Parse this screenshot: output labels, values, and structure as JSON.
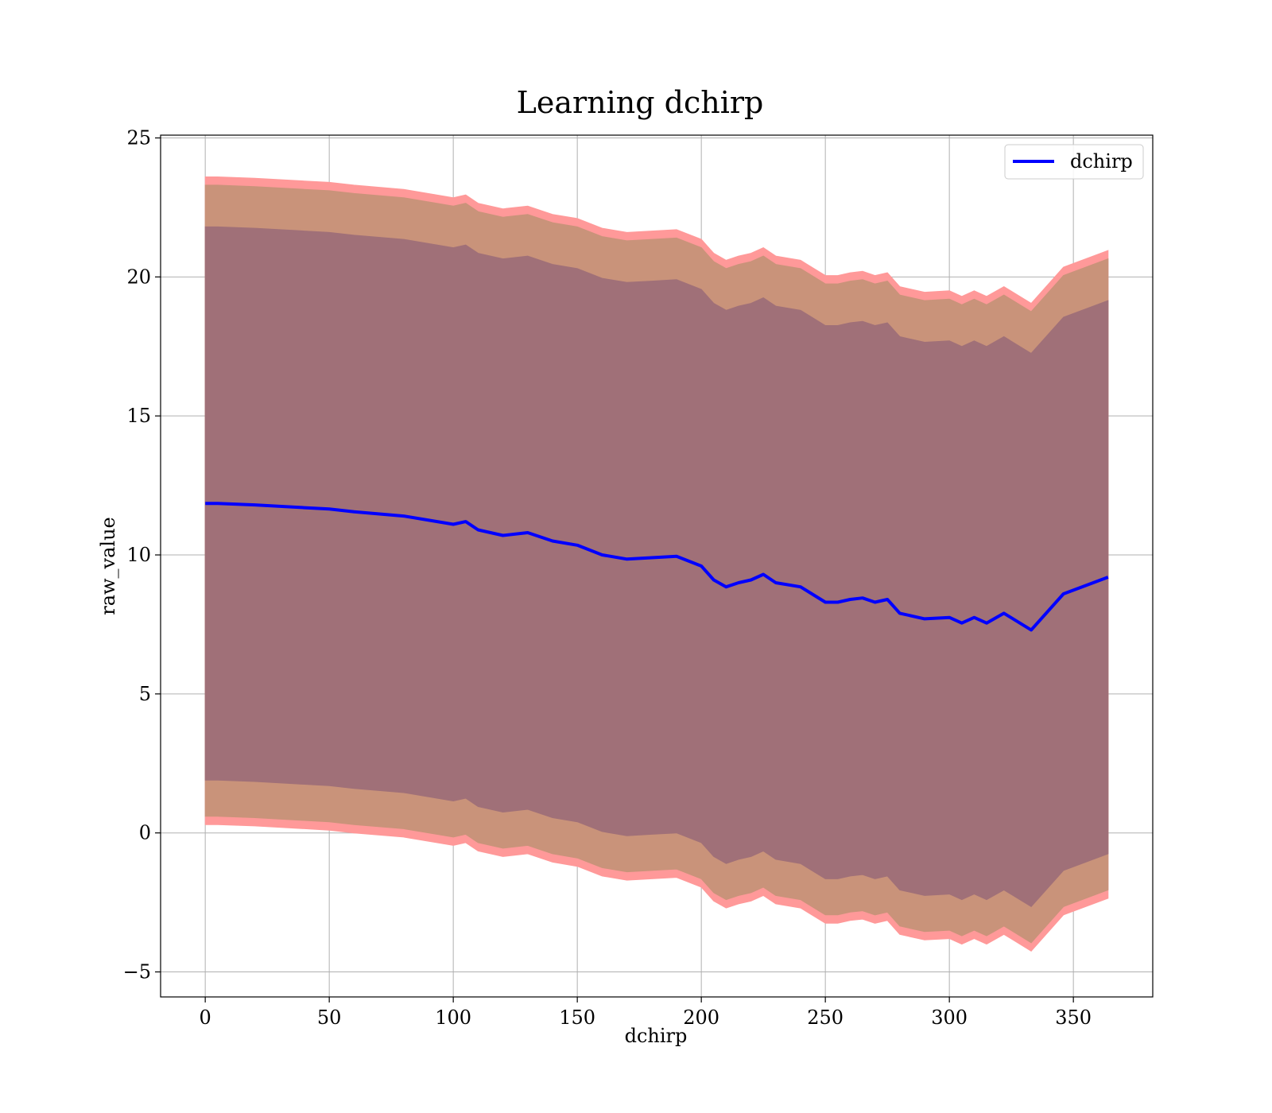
{
  "chart_data": {
    "type": "line",
    "title": "Learning dchirp",
    "xlabel": "dchirp",
    "ylabel": "raw_value",
    "xlim": [
      -18,
      382
    ],
    "ylim": [
      -5.9,
      25.1
    ],
    "xticks": [
      0,
      50,
      100,
      150,
      200,
      250,
      300,
      350
    ],
    "yticks": [
      -5,
      0,
      5,
      10,
      15,
      20,
      25
    ],
    "xtick_labels": [
      "0",
      "50",
      "100",
      "150",
      "200",
      "250",
      "300",
      "350"
    ],
    "ytick_labels": [
      "−5",
      "0",
      "5",
      "10",
      "15",
      "20",
      "25"
    ],
    "grid": true,
    "legend": {
      "position": "top-right",
      "entries": [
        "dchirp"
      ]
    },
    "colors": {
      "line": "#0000ff",
      "band_outer": "#ff9999",
      "band_middle": "#c9937a",
      "band_inner": "#a07078",
      "grid": "#b0b0b0"
    },
    "x": [
      0,
      5,
      20,
      40,
      50,
      60,
      80,
      100,
      105,
      110,
      120,
      130,
      140,
      150,
      160,
      170,
      180,
      190,
      200,
      205,
      210,
      215,
      220,
      225,
      230,
      240,
      250,
      255,
      260,
      265,
      270,
      275,
      280,
      290,
      300,
      305,
      310,
      315,
      322,
      333,
      346,
      364
    ],
    "series": [
      {
        "name": "dchirp",
        "values": [
          11.85,
          11.85,
          11.8,
          11.7,
          11.65,
          11.55,
          11.4,
          11.1,
          11.2,
          10.9,
          10.7,
          10.8,
          10.5,
          10.35,
          10.0,
          9.85,
          9.9,
          9.95,
          9.6,
          9.1,
          8.85,
          9.0,
          9.1,
          9.3,
          9.0,
          8.85,
          8.3,
          8.3,
          8.4,
          8.45,
          8.3,
          8.4,
          7.9,
          7.7,
          7.75,
          7.55,
          7.75,
          7.55,
          7.9,
          7.3,
          8.6,
          9.2
        ]
      }
    ],
    "bands": [
      {
        "lower": [
          0.3,
          0.3,
          0.25,
          0.15,
          0.1,
          0.0,
          -0.15,
          -0.45,
          -0.35,
          -0.65,
          -0.85,
          -0.75,
          -1.05,
          -1.2,
          -1.55,
          -1.7,
          -1.65,
          -1.6,
          -1.95,
          -2.45,
          -2.7,
          -2.55,
          -2.45,
          -2.25,
          -2.55,
          -2.7,
          -3.25,
          -3.25,
          -3.15,
          -3.1,
          -3.25,
          -3.15,
          -3.65,
          -3.85,
          -3.8,
          -4.0,
          -3.8,
          -4.0,
          -3.65,
          -4.25,
          -2.95,
          -2.35
        ],
        "upper": [
          23.6,
          23.6,
          23.55,
          23.45,
          23.4,
          23.3,
          23.15,
          22.85,
          22.95,
          22.65,
          22.45,
          22.55,
          22.25,
          22.1,
          21.75,
          21.6,
          21.65,
          21.7,
          21.35,
          20.85,
          20.6,
          20.75,
          20.85,
          21.05,
          20.75,
          20.6,
          20.05,
          20.05,
          20.15,
          20.2,
          20.05,
          20.15,
          19.65,
          19.45,
          19.5,
          19.3,
          19.5,
          19.3,
          19.65,
          19.05,
          20.35,
          20.95
        ]
      },
      {
        "lower": [
          0.6,
          0.6,
          0.55,
          0.45,
          0.4,
          0.3,
          0.15,
          -0.15,
          -0.05,
          -0.35,
          -0.55,
          -0.45,
          -0.75,
          -0.9,
          -1.25,
          -1.4,
          -1.35,
          -1.3,
          -1.65,
          -2.15,
          -2.4,
          -2.25,
          -2.15,
          -1.95,
          -2.25,
          -2.4,
          -2.95,
          -2.95,
          -2.85,
          -2.8,
          -2.95,
          -2.85,
          -3.35,
          -3.55,
          -3.5,
          -3.7,
          -3.5,
          -3.7,
          -3.35,
          -3.95,
          -2.65,
          -2.05
        ],
        "upper": [
          23.3,
          23.3,
          23.25,
          23.15,
          23.1,
          23.0,
          22.85,
          22.55,
          22.65,
          22.35,
          22.15,
          22.25,
          21.95,
          21.8,
          21.45,
          21.3,
          21.35,
          21.4,
          21.05,
          20.55,
          20.3,
          20.45,
          20.55,
          20.75,
          20.45,
          20.3,
          19.75,
          19.75,
          19.85,
          19.9,
          19.75,
          19.85,
          19.35,
          19.15,
          19.2,
          19.0,
          19.2,
          19.0,
          19.35,
          18.75,
          20.05,
          20.65
        ]
      },
      {
        "lower": [
          1.9,
          1.9,
          1.85,
          1.75,
          1.7,
          1.6,
          1.45,
          1.15,
          1.25,
          0.95,
          0.75,
          0.85,
          0.55,
          0.4,
          0.05,
          -0.1,
          -0.05,
          0.0,
          -0.35,
          -0.85,
          -1.1,
          -0.95,
          -0.85,
          -0.65,
          -0.95,
          -1.1,
          -1.65,
          -1.65,
          -1.55,
          -1.5,
          -1.65,
          -1.55,
          -2.05,
          -2.25,
          -2.2,
          -2.4,
          -2.2,
          -2.4,
          -2.05,
          -2.65,
          -1.35,
          -0.75
        ],
        "upper": [
          21.8,
          21.8,
          21.75,
          21.65,
          21.6,
          21.5,
          21.35,
          21.05,
          21.15,
          20.85,
          20.65,
          20.75,
          20.45,
          20.3,
          19.95,
          19.8,
          19.85,
          19.9,
          19.55,
          19.05,
          18.8,
          18.95,
          19.05,
          19.25,
          18.95,
          18.8,
          18.25,
          18.25,
          18.35,
          18.4,
          18.25,
          18.35,
          17.85,
          17.65,
          17.7,
          17.5,
          17.7,
          17.5,
          17.85,
          17.25,
          18.55,
          19.15
        ]
      }
    ]
  }
}
